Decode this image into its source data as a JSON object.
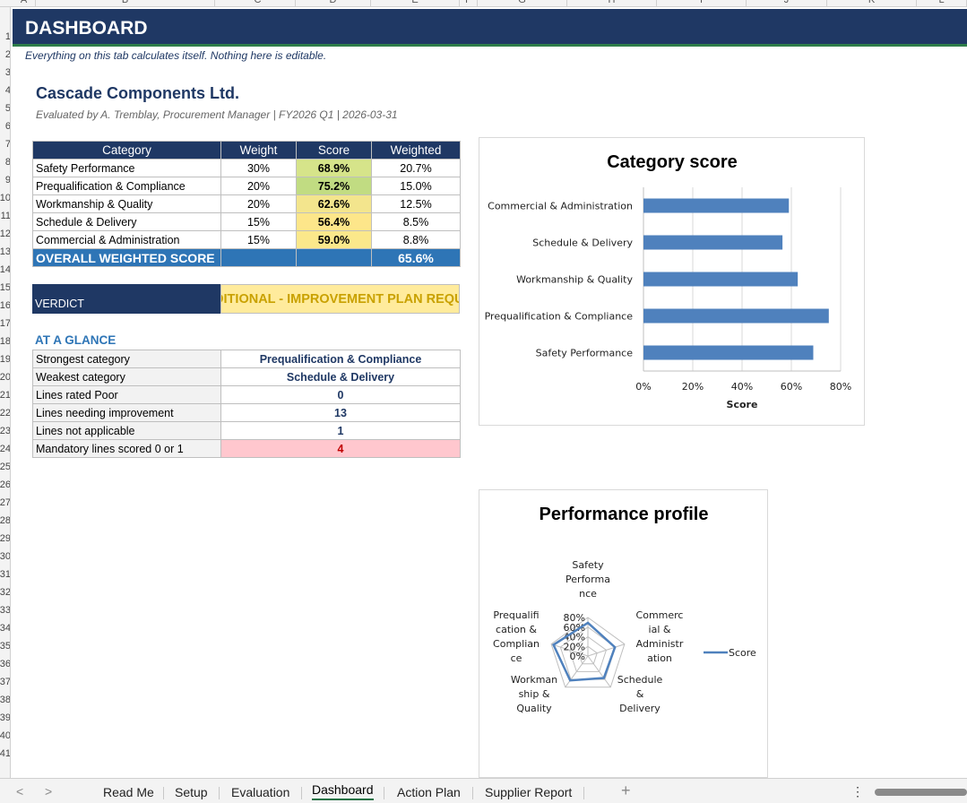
{
  "column_letters": [
    "A",
    "B",
    "C",
    "D",
    "E",
    "F",
    "G",
    "H",
    "I",
    "J",
    "K",
    "L"
  ],
  "row_numbers": [
    "1",
    "2",
    "3",
    "4",
    "5",
    "6",
    "7",
    "8",
    "9",
    "10",
    "11",
    "12",
    "13",
    "14",
    "15",
    "16",
    "17",
    "18",
    "19",
    "20",
    "21",
    "22",
    "23",
    "24",
    "25",
    "26",
    "27",
    "28",
    "29",
    "30",
    "31",
    "32",
    "33",
    "34",
    "35",
    "36",
    "37",
    "38",
    "39",
    "40",
    "41"
  ],
  "dashboard": {
    "title": "DASHBOARD",
    "subnote": "Everything on this tab calculates itself. Nothing here is editable.",
    "company": "Cascade Components Ltd.",
    "meta": "Evaluated by A. Tremblay, Procurement Manager  |  FY2026 Q1  |  2026-03-31"
  },
  "score_table": {
    "headers": [
      "Category",
      "Weight",
      "Score",
      "Weighted"
    ],
    "rows": [
      {
        "category": "Safety Performance",
        "weight": "30%",
        "score": "68.9%",
        "weighted": "20.7%",
        "score_color": "#d6e48a"
      },
      {
        "category": "Prequalification & Compliance",
        "weight": "20%",
        "score": "75.2%",
        "weighted": "15.0%",
        "score_color": "#c1dc82"
      },
      {
        "category": "Workmanship & Quality",
        "weight": "20%",
        "score": "62.6%",
        "weighted": "12.5%",
        "score_color": "#f3e58d"
      },
      {
        "category": "Schedule & Delivery",
        "weight": "15%",
        "score": "56.4%",
        "weighted": "8.5%",
        "score_color": "#fde68a"
      },
      {
        "category": "Commercial & Administration",
        "weight": "15%",
        "score": "59.0%",
        "weighted": "8.8%",
        "score_color": "#fbe88b"
      }
    ],
    "overall_label": "OVERALL WEIGHTED SCORE",
    "overall_value": "65.6%"
  },
  "verdict": {
    "label": "VERDICT",
    "value": "CONDITIONAL - IMPROVEMENT PLAN REQUIRED"
  },
  "glance": {
    "title": "AT A GLANCE",
    "rows": [
      {
        "label": "Strongest category",
        "value": "Prequalification & Compliance",
        "alert": false
      },
      {
        "label": "Weakest category",
        "value": "Schedule & Delivery",
        "alert": false
      },
      {
        "label": "Lines rated Poor",
        "value": "0",
        "alert": false
      },
      {
        "label": "Lines needing improvement",
        "value": "13",
        "alert": false
      },
      {
        "label": "Lines not applicable",
        "value": "1",
        "alert": false
      },
      {
        "label": "Mandatory lines scored 0 or 1",
        "value": "4",
        "alert": true
      }
    ]
  },
  "chart_data": [
    {
      "type": "bar",
      "orientation": "horizontal",
      "title": "Category score",
      "xlabel": "Score",
      "ylabel": "",
      "categories": [
        "Commercial & Administration",
        "Schedule & Delivery",
        "Workmanship & Quality",
        "Prequalification & Compliance",
        "Safety Performance"
      ],
      "values": [
        59.0,
        56.4,
        62.6,
        75.2,
        68.9
      ],
      "xlim": [
        0,
        80
      ],
      "ticks": [
        "0%",
        "20%",
        "40%",
        "60%",
        "80%"
      ],
      "grid": "vertical",
      "color": "#4f81bd"
    },
    {
      "type": "radar",
      "title": "Performance profile",
      "axes": [
        "Safety Performance",
        "Commercial & Administration",
        "Schedule & Delivery",
        "Workmanship & Quality",
        "Prequalification & Compliance"
      ],
      "axis_label_lines": [
        [
          "Safety",
          "Performa",
          "nce"
        ],
        [
          "Commerc",
          "ial &",
          "Administr",
          "ation"
        ],
        [
          "Schedule",
          "&",
          "Delivery"
        ],
        [
          "Workman",
          "ship &",
          "Quality"
        ],
        [
          "Prequalifi",
          "cation &",
          "Complian",
          "ce"
        ]
      ],
      "series": [
        {
          "name": "Score",
          "values": [
            68.9,
            59.0,
            56.4,
            62.6,
            75.2
          ]
        }
      ],
      "rlim": [
        0,
        80
      ],
      "ticks": [
        "0%",
        "20%",
        "40%",
        "60%",
        "80%"
      ],
      "legend": "right",
      "color": "#4f81bd"
    }
  ],
  "tabs": [
    "Read Me",
    "Setup",
    "Evaluation",
    "Dashboard",
    "Action Plan",
    "Supplier Report"
  ],
  "active_tab": "Dashboard",
  "tabbar": {
    "add": "+",
    "more": "⋮",
    "prev": "<",
    "next": ">"
  }
}
